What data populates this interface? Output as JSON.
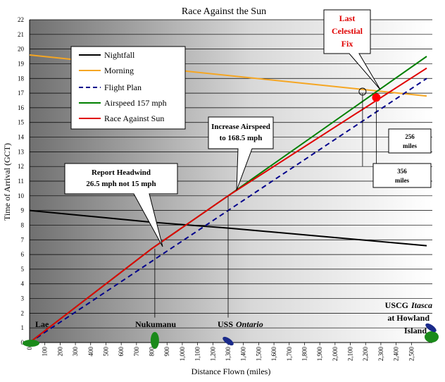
{
  "chart_data": {
    "type": "line",
    "title": "Race Against the Sun",
    "xlabel": "Distance Flown (miles)",
    "ylabel": "Time of Arrival (GCT)",
    "xlim": [
      0,
      2600
    ],
    "ylim": [
      0,
      22
    ],
    "x_ticks": [
      "0",
      "100",
      "200",
      "300",
      "400",
      "500",
      "600",
      "700",
      "800",
      "900",
      "1,000",
      "1,100",
      "1,200",
      "1,300",
      "1,400",
      "1,500",
      "1,600",
      "1,700",
      "1,800",
      "1,900",
      "2,000",
      "2,100",
      "2,200",
      "2,300",
      "2,400",
      "2,500"
    ],
    "y_ticks": [
      "0",
      "1",
      "2",
      "3",
      "4",
      "5",
      "6",
      "7",
      "8",
      "9",
      "10",
      "11",
      "12",
      "13",
      "14",
      "15",
      "16",
      "17",
      "18",
      "19",
      "20",
      "21",
      "22"
    ],
    "grid": true,
    "legend_position": "top-left",
    "series": [
      {
        "name": "Nightfall",
        "color": "#000000",
        "dash": false,
        "x": [
          0,
          800,
          1300,
          2600
        ],
        "y": [
          9.0,
          8.2,
          7.8,
          6.6
        ]
      },
      {
        "name": "Morning",
        "color": "#f5a623",
        "dash": false,
        "x": [
          0,
          2600
        ],
        "y": [
          19.6,
          16.8
        ]
      },
      {
        "name": "Flight Plan",
        "color": "#00008b",
        "dash": true,
        "x": [
          0,
          2600
        ],
        "y": [
          0,
          18.0
        ]
      },
      {
        "name": "Airspeed 157 mph",
        "color": "#008000",
        "dash": false,
        "x": [
          0,
          800,
          1300,
          2600
        ],
        "y": [
          0,
          6.4,
          10.0,
          19.5
        ]
      },
      {
        "name": "Race Against Sun",
        "color": "#e00000",
        "dash": false,
        "x": [
          0,
          800,
          1300,
          2600
        ],
        "y": [
          0,
          6.4,
          10.0,
          18.7
        ]
      }
    ],
    "last_fix_point": {
      "x": 2270,
      "y": 16.7
    },
    "places": [
      {
        "label": "Lae",
        "x": 0
      },
      {
        "label": "Nukumanu",
        "x": 820
      },
      {
        "label": "USS",
        "label_italic": "Ontario",
        "x": 1300
      },
      {
        "label_line1_prefix": "USCG",
        "label_line1_italic": "Itasca",
        "label_line2": "at Howland",
        "label_line3": "Island",
        "x": 2600
      }
    ],
    "annotations": [
      {
        "lines": [
          "Report Headwind",
          "26.5 mph not 15 mph"
        ]
      },
      {
        "lines": [
          "Increase Airspeed",
          "to 168.5 mph"
        ]
      },
      {
        "lines": [
          "Last",
          "Celestial",
          "Fix"
        ]
      },
      {
        "lines": [
          "256",
          "miles"
        ]
      },
      {
        "lines": [
          "356",
          "miles"
        ]
      }
    ]
  }
}
